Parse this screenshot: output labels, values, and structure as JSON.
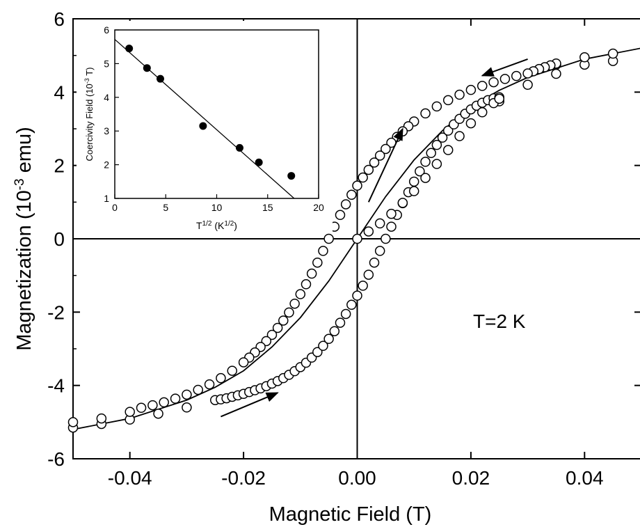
{
  "chart_data": [
    {
      "type": "scatter",
      "title": "",
      "xlabel": "Magnetic Field (T)",
      "ylabel_main": "Magnetization (10",
      "ylabel_sup": "-3",
      "ylabel_tail": " emu)",
      "xlim": [
        -0.05,
        0.05
      ],
      "ylim": [
        -6,
        6
      ],
      "x_ticks": [
        "-0.04",
        "-0.02",
        "0.00",
        "0.02",
        "0.04"
      ],
      "x_tick_values": [
        -0.04,
        -0.02,
        0.0,
        0.02,
        0.04
      ],
      "y_ticks": [
        "-6",
        "-4",
        "-2",
        "0",
        "2",
        "4",
        "6"
      ],
      "y_tick_values": [
        -6,
        -4,
        -2,
        0,
        2,
        4,
        6
      ],
      "zero_lines": true,
      "annotation": "T=2 K",
      "series": [
        {
          "marker": "open-circle",
          "points": [
            [
              -0.05,
              -5.15
            ],
            [
              -0.05,
              -5.0
            ],
            [
              -0.045,
              -5.05
            ],
            [
              -0.045,
              -4.9
            ],
            [
              -0.04,
              -4.93
            ],
            [
              -0.04,
              -4.72
            ],
            [
              -0.035,
              -4.77
            ],
            [
              -0.03,
              -4.6
            ],
            [
              -0.025,
              -4.4
            ],
            [
              -0.024,
              -4.38
            ],
            [
              -0.023,
              -4.35
            ],
            [
              -0.022,
              -4.31
            ],
            [
              -0.021,
              -4.27
            ],
            [
              -0.02,
              -4.23
            ],
            [
              -0.019,
              -4.18
            ],
            [
              -0.018,
              -4.13
            ],
            [
              -0.017,
              -4.08
            ],
            [
              -0.016,
              -4.02
            ],
            [
              -0.015,
              -3.95
            ],
            [
              -0.014,
              -3.88
            ],
            [
              -0.013,
              -3.8
            ],
            [
              -0.012,
              -3.71
            ],
            [
              -0.011,
              -3.61
            ],
            [
              -0.01,
              -3.5
            ],
            [
              -0.009,
              -3.38
            ],
            [
              -0.008,
              -3.24
            ],
            [
              -0.007,
              -3.09
            ],
            [
              -0.006,
              -2.92
            ],
            [
              -0.005,
              -2.73
            ],
            [
              -0.004,
              -2.52
            ],
            [
              -0.003,
              -2.29
            ],
            [
              -0.002,
              -2.05
            ],
            [
              -0.001,
              -1.8
            ],
            [
              0.0,
              -1.55
            ],
            [
              0.001,
              -1.28
            ],
            [
              0.002,
              -0.98
            ],
            [
              0.003,
              -0.65
            ],
            [
              0.004,
              -0.33
            ],
            [
              0.005,
              0.0
            ],
            [
              0.006,
              0.33
            ],
            [
              0.007,
              0.65
            ],
            [
              0.008,
              0.97
            ],
            [
              0.009,
              1.27
            ],
            [
              0.01,
              1.56
            ],
            [
              0.011,
              1.84
            ],
            [
              0.012,
              2.1
            ],
            [
              0.013,
              2.34
            ],
            [
              0.014,
              2.56
            ],
            [
              0.015,
              2.76
            ],
            [
              0.016,
              2.95
            ],
            [
              0.017,
              3.12
            ],
            [
              0.018,
              3.27
            ],
            [
              0.019,
              3.41
            ],
            [
              0.02,
              3.53
            ],
            [
              0.021,
              3.63
            ],
            [
              0.022,
              3.71
            ],
            [
              0.023,
              3.78
            ],
            [
              0.024,
              3.83
            ],
            [
              0.025,
              3.86
            ],
            [
              0.025,
              3.75
            ],
            [
              0.03,
              4.2
            ],
            [
              0.035,
              4.5
            ],
            [
              0.035,
              4.75
            ],
            [
              0.04,
              4.75
            ],
            [
              0.04,
              4.95
            ],
            [
              0.045,
              4.85
            ],
            [
              0.045,
              5.05
            ],
            [
              0.035,
              4.78
            ],
            [
              0.034,
              4.73
            ],
            [
              0.033,
              4.68
            ],
            [
              0.032,
              4.63
            ],
            [
              0.031,
              4.57
            ],
            [
              0.03,
              4.51
            ],
            [
              0.028,
              4.44
            ],
            [
              0.026,
              4.36
            ],
            [
              0.024,
              4.27
            ],
            [
              0.022,
              4.17
            ],
            [
              0.02,
              4.06
            ],
            [
              0.018,
              3.93
            ],
            [
              0.016,
              3.78
            ],
            [
              0.014,
              3.61
            ],
            [
              0.012,
              3.42
            ],
            [
              0.01,
              3.2
            ],
            [
              0.009,
              3.07
            ],
            [
              0.008,
              2.93
            ],
            [
              0.007,
              2.78
            ],
            [
              0.006,
              2.62
            ],
            [
              0.005,
              2.45
            ],
            [
              0.004,
              2.27
            ],
            [
              0.003,
              2.08
            ],
            [
              0.002,
              1.88
            ],
            [
              0.001,
              1.67
            ],
            [
              0.0,
              1.45
            ],
            [
              -0.001,
              1.2
            ],
            [
              -0.002,
              0.94
            ],
            [
              -0.003,
              0.65
            ],
            [
              -0.004,
              0.33
            ],
            [
              -0.005,
              0.0
            ],
            [
              -0.006,
              -0.33
            ],
            [
              -0.007,
              -0.65
            ],
            [
              -0.008,
              -0.95
            ],
            [
              -0.009,
              -1.24
            ],
            [
              -0.01,
              -1.51
            ],
            [
              -0.011,
              -1.77
            ],
            [
              -0.012,
              -2.01
            ],
            [
              -0.013,
              -2.23
            ],
            [
              -0.014,
              -2.43
            ],
            [
              -0.015,
              -2.62
            ],
            [
              -0.016,
              -2.79
            ],
            [
              -0.017,
              -2.95
            ],
            [
              -0.018,
              -3.1
            ],
            [
              -0.019,
              -3.24
            ],
            [
              -0.02,
              -3.37
            ],
            [
              -0.022,
              -3.6
            ],
            [
              -0.024,
              -3.8
            ],
            [
              -0.026,
              -3.97
            ],
            [
              -0.028,
              -4.12
            ],
            [
              -0.03,
              -4.25
            ],
            [
              -0.032,
              -4.36
            ],
            [
              -0.034,
              -4.46
            ],
            [
              -0.036,
              -4.54
            ],
            [
              -0.038,
              -4.61
            ],
            [
              0.0,
              0.0
            ],
            [
              0.002,
              0.2
            ],
            [
              0.004,
              0.42
            ],
            [
              0.006,
              0.68
            ],
            [
              0.008,
              0.98
            ],
            [
              0.01,
              1.3
            ],
            [
              0.012,
              1.66
            ],
            [
              0.014,
              2.04
            ],
            [
              0.016,
              2.42
            ],
            [
              0.018,
              2.8
            ],
            [
              0.02,
              3.15
            ],
            [
              0.022,
              3.45
            ],
            [
              0.024,
              3.7
            ],
            [
              0.025,
              3.82
            ]
          ]
        },
        {
          "name": "",
          "style": "solid-line",
          "points": [
            [
              -0.05,
              -5.2
            ],
            [
              -0.04,
              -4.9
            ],
            [
              -0.03,
              -4.4
            ],
            [
              -0.025,
              -4.05
            ],
            [
              -0.02,
              -3.6
            ],
            [
              -0.015,
              -2.95
            ],
            [
              -0.01,
              -2.15
            ],
            [
              -0.005,
              -1.15
            ],
            [
              0.0,
              0.0
            ],
            [
              0.005,
              1.15
            ],
            [
              0.01,
              2.15
            ],
            [
              0.015,
              2.95
            ],
            [
              0.02,
              3.6
            ],
            [
              0.025,
              4.05
            ],
            [
              0.03,
              4.4
            ],
            [
              0.04,
              4.9
            ],
            [
              0.05,
              5.2
            ]
          ]
        }
      ],
      "arrows": [
        {
          "from": [
            0.03,
            4.9
          ],
          "to": [
            0.022,
            4.45
          ]
        },
        {
          "from": [
            0.002,
            1.0
          ],
          "to": [
            0.008,
            3.0
          ]
        },
        {
          "from": [
            -0.024,
            -4.85
          ],
          "to": [
            -0.014,
            -4.2
          ]
        }
      ]
    },
    {
      "type": "scatter",
      "title": "",
      "xlabel_main": "T",
      "xlabel_sup1": "1/2",
      "xlabel_mid": " (K",
      "xlabel_sup2": "1/2",
      "xlabel_tail": ")",
      "ylabel_main": "Coercivity Field (10",
      "ylabel_sup": "-3",
      "ylabel_tail": " T)",
      "xlim": [
        0,
        20
      ],
      "ylim": [
        1,
        6
      ],
      "x_ticks": [
        "0",
        "5",
        "10",
        "15",
        "20"
      ],
      "x_tick_values": [
        0,
        5,
        10,
        15,
        20
      ],
      "y_ticks": [
        "1",
        "2",
        "3",
        "4",
        "5",
        "6"
      ],
      "y_tick_values": [
        1,
        2,
        3,
        4,
        5,
        6
      ],
      "series": [
        {
          "marker": "filled-circle",
          "x": [
            1.41,
            3.16,
            4.47,
            8.66,
            12.25,
            14.14,
            17.32
          ],
          "y": [
            5.45,
            4.87,
            4.55,
            3.15,
            2.5,
            2.07,
            1.67
          ]
        }
      ],
      "fit_line": {
        "x": [
          0,
          17.6
        ],
        "y": [
          5.72,
          1.0
        ]
      }
    }
  ]
}
